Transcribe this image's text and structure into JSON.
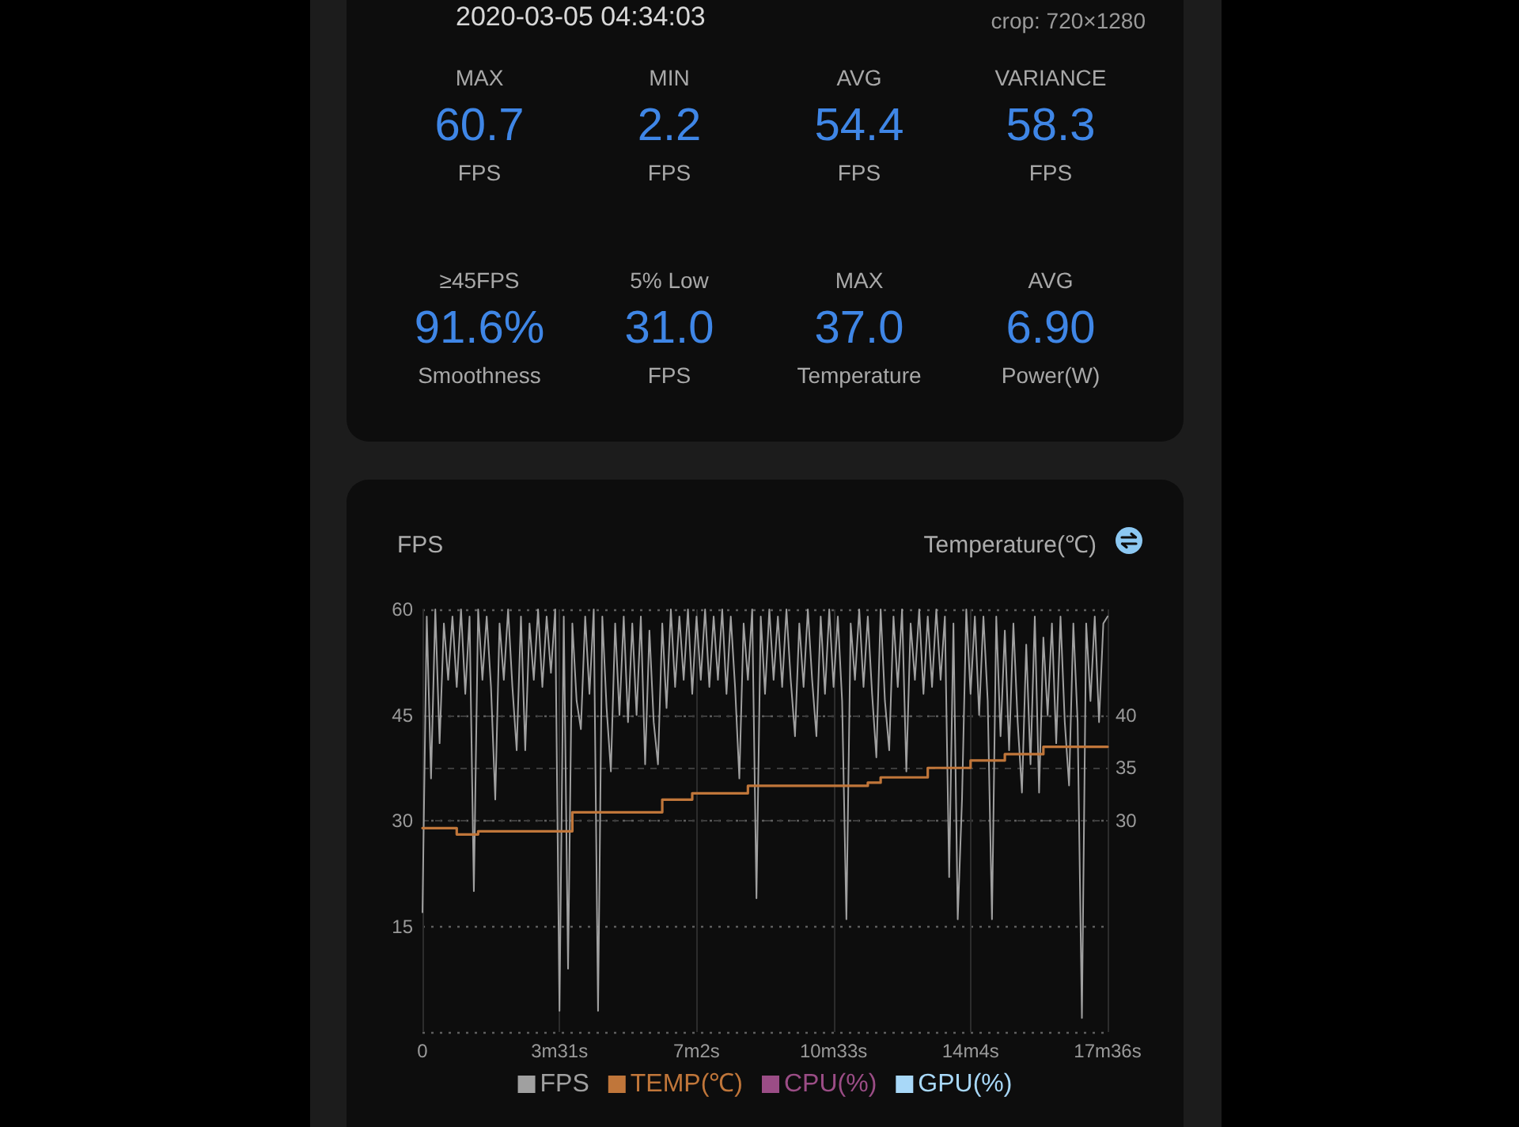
{
  "chart_data": [
    {
      "type": "other",
      "title": "2020-03-05 04:34:03",
      "annotations": [
        "crop: 720×1280",
        "MAX",
        "60.7",
        "FPS",
        "MIN",
        "2.2",
        "FPS",
        "AVG",
        "54.4",
        "FPS",
        "VARIANCE",
        "58.3",
        "FPS",
        "≥45FPS",
        "91.6%",
        "Smoothness",
        "5% Low",
        "31.0",
        "FPS",
        "MAX",
        "37.0",
        "Temperature",
        "AVG",
        "6.90",
        "Power(W)"
      ]
    },
    {
      "type": "line",
      "ylabel": "FPS",
      "y2label": "Temperature(℃)",
      "categories": [
        "0",
        null,
        null,
        null,
        null,
        null,
        null,
        null,
        null,
        null,
        null,
        null,
        null,
        null,
        null,
        null,
        null,
        null,
        null,
        null,
        null,
        null,
        null,
        null,
        null,
        null,
        null,
        null,
        null,
        null,
        null,
        null,
        "3m31s",
        null,
        null,
        null,
        null,
        null,
        null,
        null,
        null,
        null,
        null,
        null,
        null,
        null,
        null,
        null,
        null,
        null,
        null,
        null,
        null,
        null,
        null,
        null,
        null,
        null,
        null,
        null,
        null,
        null,
        null,
        null,
        "7m2s",
        null,
        null,
        null,
        null,
        null,
        null,
        null,
        null,
        null,
        null,
        null,
        null,
        null,
        null,
        null,
        null,
        null,
        null,
        null,
        null,
        null,
        null,
        null,
        null,
        null,
        null,
        null,
        null,
        null,
        null,
        null,
        "10m33s",
        null,
        null,
        null,
        null,
        null,
        null,
        null,
        null,
        null,
        null,
        null,
        null,
        null,
        null,
        null,
        null,
        null,
        null,
        null,
        null,
        null,
        null,
        null,
        null,
        null,
        null,
        null,
        null,
        null,
        null,
        null,
        "14m4s",
        null,
        null,
        null,
        null,
        null,
        null,
        null,
        null,
        null,
        null,
        null,
        null,
        null,
        null,
        null,
        null,
        null,
        null,
        null,
        null,
        null,
        null,
        null,
        null,
        null,
        null,
        null,
        null,
        null,
        null,
        null,
        "17m36s"
      ],
      "ylim": [
        0,
        60
      ],
      "yticks": [
        {
          "value": 0,
          "label": null
        },
        15,
        30,
        45,
        60
      ],
      "y2lim": [
        10,
        50
      ],
      "y2ticks": [
        30,
        35,
        40
      ],
      "grid": true,
      "legend": "bottom",
      "marker": "none",
      "series": [
        {
          "name": "FPS",
          "color": "#a0a0a0",
          "values": [
            17,
            59,
            36,
            60,
            41,
            58,
            50,
            59,
            49,
            60,
            48,
            59,
            20,
            60,
            50,
            59,
            49,
            33,
            58,
            50,
            60,
            49,
            40,
            59,
            40,
            58,
            50,
            60,
            49,
            59,
            51,
            60,
            3,
            59,
            9,
            58,
            47,
            43,
            59,
            48,
            60,
            3,
            59,
            46,
            37,
            58,
            45,
            59,
            44,
            58,
            45,
            59,
            38,
            57,
            44,
            38,
            58,
            46,
            60,
            49,
            59,
            50,
            60,
            48,
            59,
            50,
            60,
            49,
            59,
            50,
            60,
            48,
            59,
            49,
            36,
            58,
            50,
            60,
            19,
            59,
            48,
            60,
            50,
            59,
            49,
            60,
            50,
            42,
            58,
            49,
            60,
            50,
            42,
            59,
            48,
            60,
            49,
            59,
            47,
            16,
            58,
            50,
            60,
            49,
            59,
            48,
            39,
            60,
            47,
            40,
            59,
            49,
            60,
            37,
            58,
            50,
            60,
            48,
            59,
            49,
            60,
            50,
            59,
            22,
            58,
            16,
            33,
            60,
            48,
            59,
            45,
            59,
            47,
            16,
            59,
            42,
            57,
            40,
            58,
            44,
            34,
            55,
            38,
            59,
            34,
            56,
            45,
            58,
            41,
            59,
            44,
            35,
            58,
            44,
            2,
            58,
            47,
            59,
            44,
            58,
            59
          ]
        },
        {
          "name": "TEMP(℃)",
          "type": "step",
          "axis": "y2",
          "color": "#c0763a",
          "values": [
            29.3,
            29.3,
            29.3,
            29.3,
            29.3,
            29.3,
            29.3,
            29.3,
            28.7,
            28.7,
            28.7,
            28.7,
            28.7,
            29.0,
            29.0,
            29.0,
            29.0,
            29.0,
            29.0,
            29.0,
            29.0,
            29.0,
            29.0,
            29.0,
            29.0,
            29.0,
            29.0,
            29.0,
            29.0,
            29.0,
            29.0,
            29.0,
            29.0,
            29.0,
            29.0,
            30.8,
            30.8,
            30.8,
            30.8,
            30.8,
            30.8,
            30.8,
            30.8,
            30.8,
            30.8,
            30.8,
            30.8,
            30.8,
            30.8,
            30.8,
            30.8,
            30.8,
            30.8,
            30.8,
            30.8,
            30.8,
            32.0,
            32.0,
            32.0,
            32.0,
            32.0,
            32.0,
            32.0,
            32.6,
            32.6,
            32.6,
            32.6,
            32.6,
            32.6,
            32.6,
            32.6,
            32.6,
            32.6,
            32.6,
            32.6,
            32.6,
            33.3,
            33.3,
            33.3,
            33.3,
            33.3,
            33.3,
            33.3,
            33.3,
            33.3,
            33.3,
            33.3,
            33.3,
            33.3,
            33.3,
            33.3,
            33.3,
            33.3,
            33.3,
            33.3,
            33.3,
            33.3,
            33.3,
            33.3,
            33.3,
            33.3,
            33.3,
            33.3,
            33.3,
            33.6,
            33.6,
            33.6,
            34.1,
            34.1,
            34.1,
            34.1,
            34.1,
            34.1,
            34.1,
            34.1,
            34.1,
            34.1,
            34.1,
            35.0,
            35.0,
            35.0,
            35.0,
            35.0,
            35.0,
            35.0,
            35.0,
            35.0,
            35.0,
            35.7,
            35.7,
            35.7,
            35.7,
            35.7,
            35.7,
            35.7,
            35.7,
            36.3,
            36.3,
            36.3,
            36.3,
            36.3,
            36.3,
            36.3,
            36.3,
            36.3,
            37.0,
            37.0,
            37.0,
            37.0,
            37.0,
            37.0,
            37.0,
            37.0,
            37.0,
            37.0,
            37.0,
            37.0,
            37.0,
            37.0,
            37.0,
            37.0
          ]
        },
        {
          "name": "CPU(%)",
          "color": "#9b4d86",
          "values": [
            null,
            null,
            null,
            null,
            null,
            null,
            null,
            null,
            null,
            null,
            null,
            null,
            null,
            null,
            null,
            null,
            null,
            null,
            null,
            null,
            null,
            null,
            null,
            null,
            null,
            null,
            null,
            null,
            null,
            null,
            null,
            null,
            null,
            null,
            null,
            null,
            null,
            null,
            null,
            null,
            null,
            null,
            null,
            null,
            null,
            null,
            null,
            null,
            null,
            null,
            null,
            null,
            null,
            null,
            null,
            null,
            null,
            null,
            null,
            null,
            null,
            null,
            null,
            null,
            null,
            null,
            null,
            null,
            null,
            null,
            null,
            null,
            null,
            null,
            null,
            null,
            null,
            null,
            null,
            null,
            null,
            null,
            null,
            null,
            null,
            null,
            null,
            null,
            null,
            null,
            null,
            null,
            null,
            null,
            null,
            null,
            null,
            null,
            null,
            null,
            null,
            null,
            null,
            null,
            null,
            null,
            null,
            null,
            null,
            null,
            null,
            null,
            null,
            null,
            null,
            null,
            null,
            null,
            null,
            null,
            null,
            null,
            null,
            null,
            null,
            null,
            null,
            null,
            null,
            null,
            null,
            null,
            null,
            null,
            null,
            null,
            null,
            null,
            null,
            null,
            null,
            null,
            null,
            null,
            null,
            null,
            null,
            null,
            null,
            null,
            null,
            null,
            null,
            null,
            null,
            null,
            null,
            null,
            null,
            null,
            null
          ]
        },
        {
          "name": "GPU(%)",
          "color": "#a8d8f8",
          "values": [
            null,
            null,
            null,
            null,
            null,
            null,
            null,
            null,
            null,
            null,
            null,
            null,
            null,
            null,
            null,
            null,
            null,
            null,
            null,
            null,
            null,
            null,
            null,
            null,
            null,
            null,
            null,
            null,
            null,
            null,
            null,
            null,
            null,
            null,
            null,
            null,
            null,
            null,
            null,
            null,
            null,
            null,
            null,
            null,
            null,
            null,
            null,
            null,
            null,
            null,
            null,
            null,
            null,
            null,
            null,
            null,
            null,
            null,
            null,
            null,
            null,
            null,
            null,
            null,
            null,
            null,
            null,
            null,
            null,
            null,
            null,
            null,
            null,
            null,
            null,
            null,
            null,
            null,
            null,
            null,
            null,
            null,
            null,
            null,
            null,
            null,
            null,
            null,
            null,
            null,
            null,
            null,
            null,
            null,
            null,
            null,
            null,
            null,
            null,
            null,
            null,
            null,
            null,
            null,
            null,
            null,
            null,
            null,
            null,
            null,
            null,
            null,
            null,
            null,
            null,
            null,
            null,
            null,
            null,
            null,
            null,
            null,
            null,
            null,
            null,
            null,
            null,
            null,
            null,
            null,
            null,
            null,
            null,
            null,
            null,
            null,
            null,
            null,
            null,
            null,
            null,
            null,
            null,
            null,
            null,
            null,
            null,
            null,
            null,
            null,
            null,
            null,
            null,
            null,
            null,
            null,
            null,
            null,
            null,
            null,
            null
          ]
        }
      ]
    }
  ]
}
